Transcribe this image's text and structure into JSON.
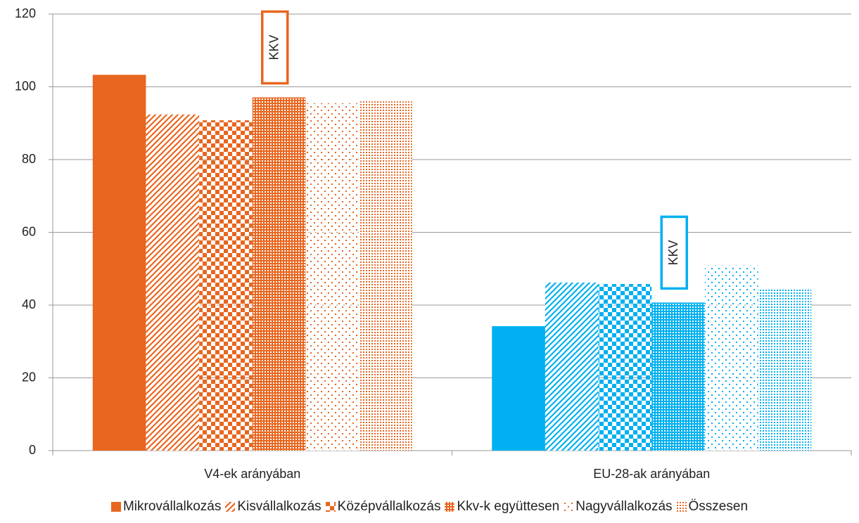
{
  "chart_data": {
    "type": "bar",
    "categories": [
      "V4-ek arányában",
      "EU-28-ak arányában"
    ],
    "category_colors": [
      "#e8661f",
      "#00b0f0"
    ],
    "series": [
      {
        "name": "Mikrovállalkozás",
        "color": "#e8661f",
        "pattern": "solid",
        "values": [
          103.3,
          34.2
        ]
      },
      {
        "name": "Kisvállalkozás",
        "color": "#e8661f",
        "pattern": "diagonal",
        "values": [
          92.4,
          46.2
        ]
      },
      {
        "name": "Középvállalkozás",
        "color": "#e8661f",
        "pattern": "checker",
        "values": [
          90.8,
          45.8
        ]
      },
      {
        "name": "Kkv-k együttesen",
        "color": "#e8661f",
        "pattern": "grid",
        "values": [
          97.1,
          40.7
        ]
      },
      {
        "name": "Nagyvállalkozás",
        "color": "#e8661f",
        "pattern": "sparse-dots",
        "values": [
          95.5,
          50.9
        ]
      },
      {
        "name": "Összesen",
        "color": "#e8661f",
        "pattern": "dots",
        "values": [
          96.0,
          44.6
        ]
      }
    ],
    "annotations": [
      "KKV",
      "KKV"
    ],
    "ylim": [
      0,
      120
    ],
    "yticks": [
      0,
      20,
      40,
      60,
      80,
      100,
      120
    ],
    "grid": true,
    "legend": "bottom"
  }
}
